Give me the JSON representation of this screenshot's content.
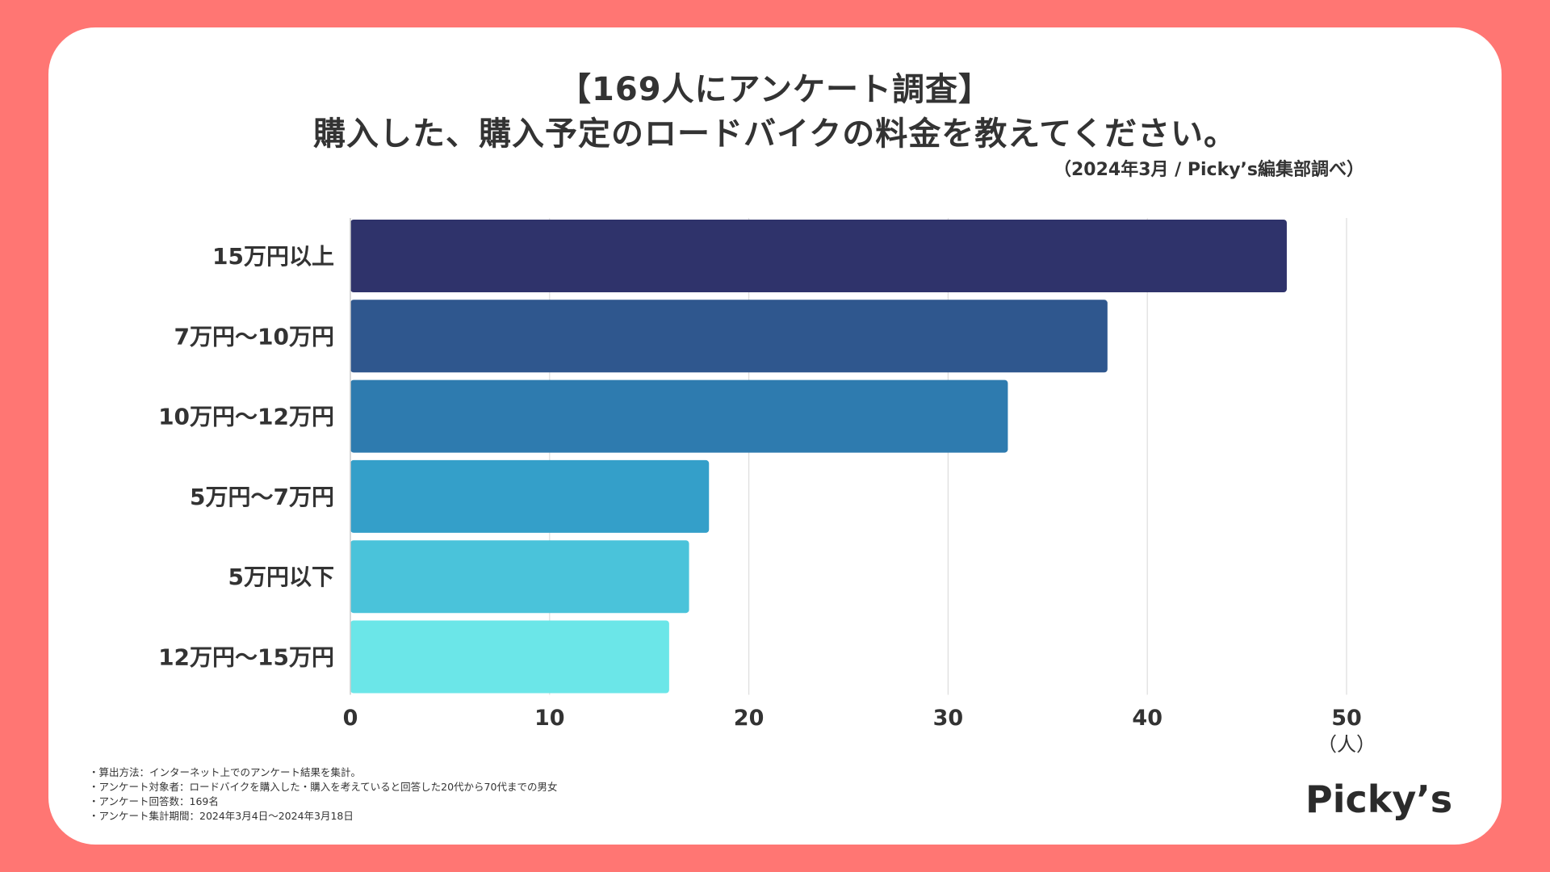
{
  "title_line1": "【169人にアンケート調査】",
  "title_line2": "購入した、購入予定のロードバイクの料金を教えてください。",
  "source": "（2024年3月 / Picky’s編集部調べ）",
  "colors": {
    "background": "#FF7673",
    "bars": [
      "#2F336B",
      "#2F578E",
      "#2E7BAF",
      "#349FC9",
      "#4AC3DA",
      "#6BE6E8"
    ]
  },
  "chart_data": {
    "type": "bar",
    "orientation": "horizontal",
    "categories": [
      "15万円以上",
      "7万円〜10万円",
      "10万円〜12万円",
      "5万円〜7万円",
      "5万円以下",
      "12万円〜15万円"
    ],
    "values": [
      47,
      38,
      33,
      18,
      17,
      16
    ],
    "xlim": [
      0,
      50
    ],
    "xticks": [
      "0",
      "10",
      "20",
      "30",
      "40",
      "50"
    ],
    "xlabel": "（人）",
    "grid": true
  },
  "notes": [
    "・算出方法：インターネット上でのアンケート結果を集計。",
    "・アンケート対象者：ロードバイクを購入した・購入を考えていると回答した20代から70代までの男女",
    "・アンケート回答数：169名",
    "・アンケート集計期間：2024年3月4日〜2024年3月18日"
  ],
  "logo": "Picky’s"
}
